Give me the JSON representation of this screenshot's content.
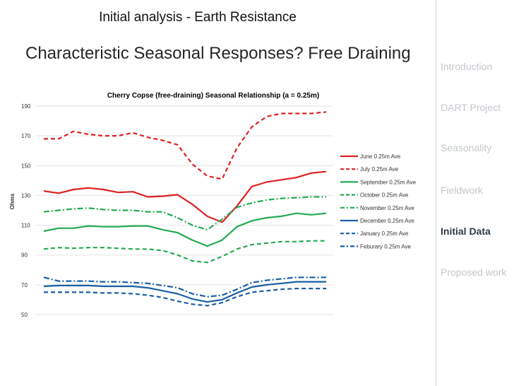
{
  "slide": {
    "header": "Initial analysis  - Earth Resistance",
    "title": "Characteristic Seasonal Responses? Free Draining"
  },
  "sidebar": {
    "items": [
      {
        "label": "Introduction",
        "active": false
      },
      {
        "label": "DART Project",
        "active": false
      },
      {
        "label": "Seasonality",
        "active": false
      },
      {
        "label": "Fieldwork",
        "active": false
      },
      {
        "label": "Initial Data",
        "active": true
      },
      {
        "label": "Proposed work",
        "active": false
      }
    ]
  },
  "colors": {
    "red": "#dd2222",
    "green": "#22aa55",
    "blue": "#1a5fa6",
    "grid": "#e3e3e3",
    "axis_text": "#333333"
  },
  "chart_data": {
    "type": "line",
    "title": "Cherry Copse (free-draining) Seasonal Relationship (a = 0.25m)",
    "xlabel": "",
    "ylabel": "Ohms",
    "ylim": [
      50,
      190
    ],
    "yticks": [
      50,
      70,
      90,
      110,
      130,
      150,
      170,
      190
    ],
    "x": [
      1,
      2,
      3,
      4,
      5,
      6,
      7,
      8,
      9,
      10,
      11,
      12,
      13,
      14,
      15,
      16,
      17,
      18,
      19,
      20
    ],
    "legend_position": "right",
    "series": [
      {
        "name": "June 0.25m Ave",
        "color": "red",
        "dash": "solid",
        "values": [
          133,
          131.5,
          134,
          135,
          134,
          132,
          132.5,
          129,
          129.5,
          130.5,
          124,
          116,
          112,
          123,
          136,
          139,
          140.5,
          142,
          145,
          146
        ]
      },
      {
        "name": "July 0.25m Ave",
        "color": "red",
        "dash": "dash",
        "values": [
          168,
          168,
          173,
          171,
          170,
          170,
          172,
          169,
          167,
          164,
          151,
          143,
          141,
          162,
          176,
          183,
          185,
          185,
          185,
          186
        ]
      },
      {
        "name": "September 0.25m Ave",
        "color": "green",
        "dash": "solid",
        "values": [
          106,
          108,
          108,
          109.5,
          109,
          109,
          109.5,
          109.5,
          107,
          105,
          100,
          96,
          100,
          109,
          113,
          115,
          116,
          118,
          117,
          118
        ]
      },
      {
        "name": "October 0.25m Ave",
        "color": "green",
        "dash": "dash",
        "values": [
          94,
          95,
          94.5,
          95,
          95,
          94.5,
          94,
          94,
          93,
          90,
          86,
          85,
          89,
          94,
          97,
          98,
          99,
          99,
          99.5,
          99.5
        ]
      },
      {
        "name": "November 0.25m Ave",
        "color": "green",
        "dash": "dashdot",
        "values": [
          119,
          120,
          121,
          121.5,
          120.5,
          120,
          120,
          119,
          119,
          115,
          110,
          107,
          114,
          122,
          125,
          127,
          128,
          128.5,
          129,
          129
        ]
      },
      {
        "name": "December 0.25m Ave",
        "color": "blue",
        "dash": "solid",
        "values": [
          69,
          69.5,
          69.5,
          69.5,
          69,
          69,
          69,
          68,
          66,
          64,
          60.5,
          58.5,
          60,
          64.5,
          68.5,
          70,
          71,
          72,
          72,
          72
        ]
      },
      {
        "name": "January 0.25m Ave",
        "color": "blue",
        "dash": "dash",
        "values": [
          65,
          65,
          65,
          65,
          64.5,
          64.5,
          64,
          63,
          61.5,
          59,
          57,
          56,
          58,
          62,
          65,
          66,
          67,
          67.5,
          67.5,
          67.5
        ]
      },
      {
        "name": "Feburary 0.25m Ave",
        "color": "blue",
        "dash": "dashdot",
        "values": [
          75,
          72.5,
          72.5,
          72.5,
          72,
          72,
          71.5,
          71,
          69.5,
          68,
          64,
          62,
          63,
          67,
          71.5,
          73,
          74,
          75,
          75,
          75
        ]
      }
    ]
  }
}
